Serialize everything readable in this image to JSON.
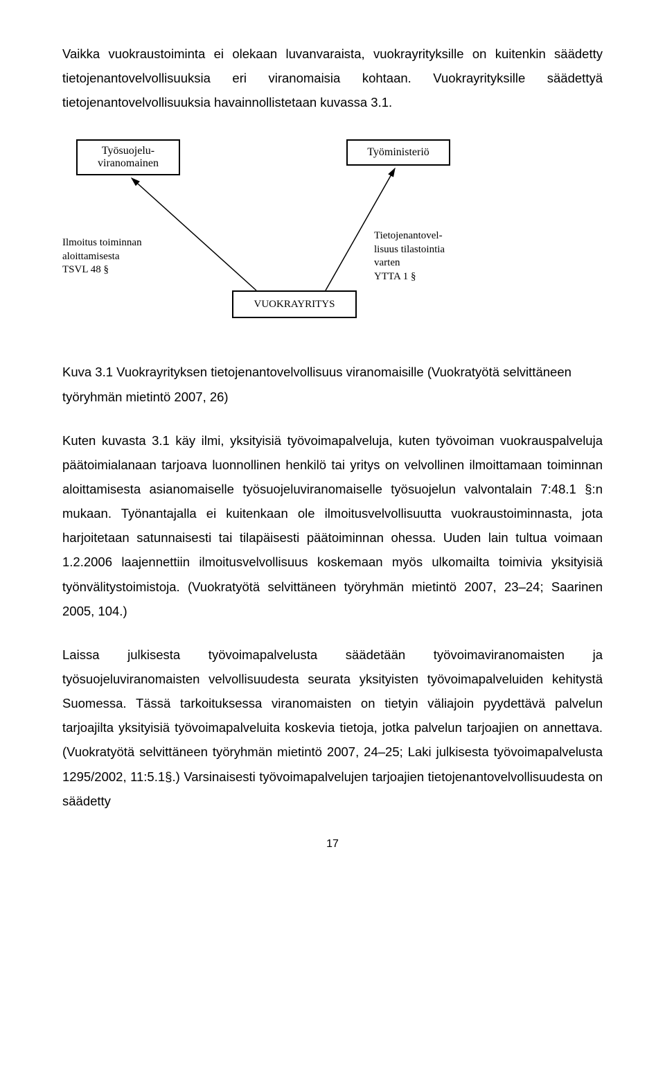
{
  "para1": "Vaikka vuokraustoiminta ei olekaan luvanvaraista, vuokrayrityksille on kuitenkin säädetty tietojenantovelvollisuuksia eri viranomaisia kohtaan. Vuokrayrityksille säädettyä tietojenantovelvollisuuksia havainnollistetaan kuvassa 3.1.",
  "diagram": {
    "box_tl": "Työsuojelu-\nviranomainen",
    "box_tr": "Työministeriö",
    "box_center": "VUOKRAYRITYS",
    "label_left": "Ilmoitus toiminnan\naloittamisesta\nTSVL 48 §",
    "label_right": "Tietojenantovel-\nlisuus tilastointia\nvarten\nYTTA 1 §"
  },
  "caption": "Kuva 3.1 Vuokrayrityksen tietojenantovelvollisuus viranomaisille (Vuokratyötä selvittäneen työryhmän mietintö 2007, 26)",
  "para2": "Kuten kuvasta 3.1 käy ilmi, yksityisiä työvoimapalveluja, kuten työvoiman vuokrauspalveluja päätoimialanaan tarjoava luonnollinen henkilö tai yritys on velvollinen ilmoittamaan toiminnan aloittamisesta asianomaiselle työsuojeluviranomaiselle työsuojelun valvontalain 7:48.1 §:n mukaan. Työnantajalla ei kuitenkaan ole ilmoitusvelvollisuutta vuokraustoiminnasta, jota harjoitetaan satunnaisesti tai tilapäisesti päätoiminnan ohessa. Uuden lain tultua voimaan 1.2.2006 laajennettiin ilmoitusvelvollisuus koskemaan myös ulkomailta toimivia yksityisiä työnvälitystoimistoja. (Vuokratyötä selvittäneen työryhmän mietintö 2007, 23–24; Saarinen 2005, 104.)",
  "para3": "Laissa julkisesta työvoimapalvelusta säädetään työvoimaviranomaisten ja työsuojeluviranomaisten velvollisuudesta seurata yksityisten työvoimapalveluiden kehitystä Suomessa. Tässä tarkoituksessa viranomaisten on tietyin väliajoin pyydettävä palvelun tarjoajilta yksityisiä työvoimapalveluita koskevia tietoja, jotka palvelun tarjoajien on annettava. (Vuokratyötä selvittäneen työryhmän mietintö 2007, 24–25; Laki julkisesta työvoimapalvelusta 1295/2002, 11:5.1§.) Varsinaisesti työvoimapalvelujen tarjoajien tietojenantovelvollisuudesta on säädetty",
  "page_number": "17"
}
